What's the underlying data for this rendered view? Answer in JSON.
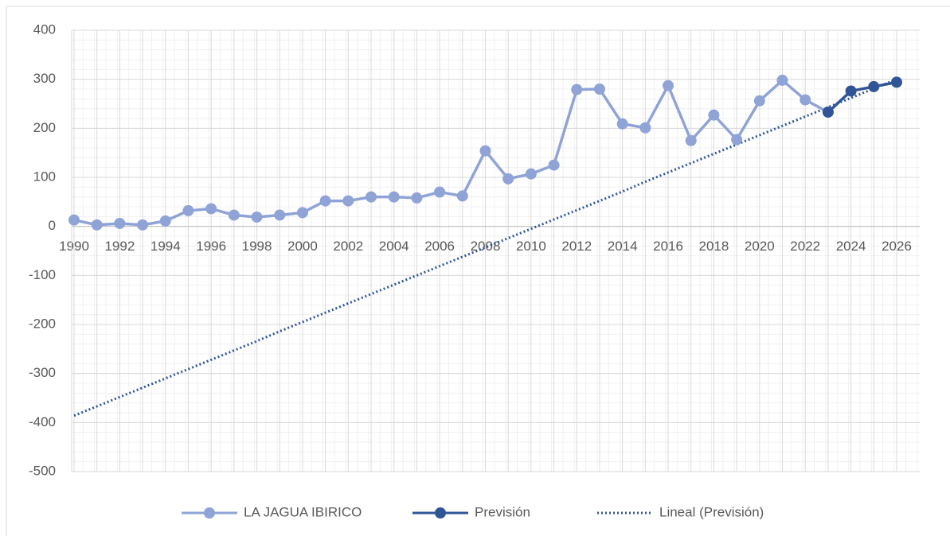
{
  "chart_data": {
    "type": "line",
    "categories": [
      "1990",
      null,
      "1992",
      null,
      "1994",
      null,
      "1996",
      null,
      "1998",
      null,
      "2000",
      null,
      "2002",
      null,
      "2004",
      null,
      "2006",
      null,
      "2008",
      null,
      "2010",
      null,
      "2012",
      null,
      "2014",
      null,
      "2016",
      null,
      "2018",
      null,
      "2020",
      null,
      "2022",
      null,
      "2024",
      null,
      "2026"
    ],
    "series": [
      {
        "name": "LA JAGUA IBIRICO",
        "color": "#8fa3d6",
        "style": "solid",
        "markers": true,
        "values": [
          13,
          3,
          6,
          3,
          11,
          32,
          36,
          23,
          19,
          23,
          28,
          52,
          52,
          60,
          60,
          58,
          70,
          62,
          154,
          97,
          107,
          125,
          279,
          280,
          209,
          201,
          287,
          175,
          227,
          177,
          256,
          298,
          258,
          233,
          null,
          null,
          null
        ]
      },
      {
        "name": "Previsión",
        "color": "#2f5597",
        "style": "solid",
        "markers": true,
        "values": [
          null,
          null,
          null,
          null,
          null,
          null,
          null,
          null,
          null,
          null,
          null,
          null,
          null,
          null,
          null,
          null,
          null,
          null,
          null,
          null,
          null,
          null,
          null,
          null,
          null,
          null,
          null,
          null,
          null,
          null,
          null,
          null,
          null,
          233,
          276,
          285,
          294
        ]
      },
      {
        "name": "Lineal (Previsión)",
        "color": "#2f5597",
        "style": "dotted",
        "markers": false,
        "values": [
          -386,
          -367,
          -348,
          -329,
          -310,
          -291,
          -272,
          -253,
          -234,
          -214,
          -195,
          -176,
          -157,
          -138,
          -119,
          -100,
          -81,
          -62,
          -43,
          -24,
          -5,
          14,
          33,
          52,
          71,
          91,
          110,
          129,
          148,
          167,
          186,
          205,
          224,
          243,
          262,
          281,
          300
        ]
      }
    ],
    "ylim": [
      -500,
      400
    ],
    "yticks": [
      -500,
      -400,
      -300,
      -200,
      -100,
      0,
      100,
      200,
      300,
      400
    ],
    "grid": true,
    "legend": "bottom"
  }
}
